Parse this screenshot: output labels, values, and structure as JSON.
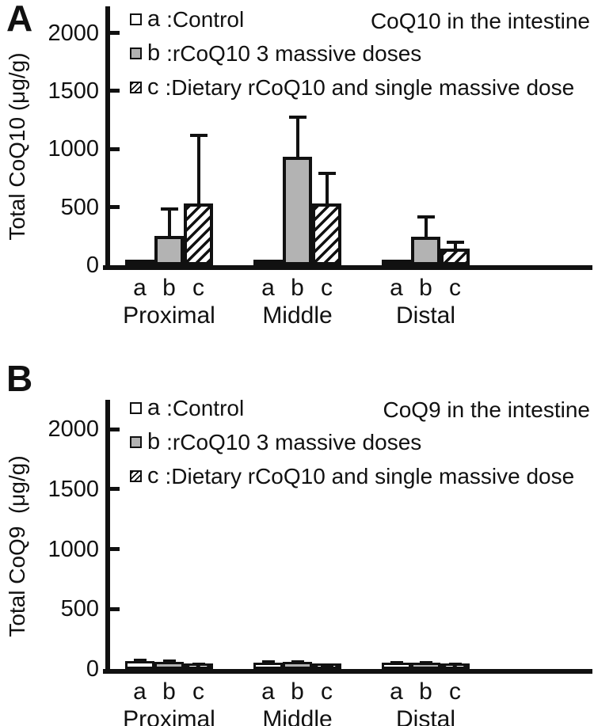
{
  "figure": {
    "panels": [
      {
        "label": "A",
        "title": "CoQ10 in the intestine",
        "y_axis_label": "Total CoQ10 (μg/g)",
        "legend": [
          {
            "key": "a",
            "label": ":Control",
            "swatch": "white"
          },
          {
            "key": "b",
            "label": ":rCoQ10 3 massive doses",
            "swatch": "gray"
          },
          {
            "key": "c",
            "label": ":Dietary rCoQ10 and single massive dose",
            "swatch": "hatch"
          }
        ]
      },
      {
        "label": "B",
        "title": "CoQ9 in the intestine",
        "y_axis_label": "Total CoQ9  (μg/g)",
        "legend": [
          {
            "key": "a",
            "label": ":Control",
            "swatch": "white"
          },
          {
            "key": "b",
            "label": ":rCoQ10 3 massive doses",
            "swatch": "gray"
          },
          {
            "key": "c",
            "label": ":Dietary rCoQ10 and single massive dose",
            "swatch": "hatch"
          }
        ]
      }
    ]
  },
  "colors": {
    "ink": "#111111",
    "bar_gray": "#b3b3b3",
    "bar_white": "#ffffff"
  },
  "chart_data": [
    {
      "type": "bar",
      "title": "CoQ10 in the intestine",
      "xlabel": "",
      "ylabel": "Total CoQ10 (μg/g)",
      "categories": [
        "Proximal",
        "Middle",
        "Distal"
      ],
      "series": [
        {
          "key": "a",
          "name": "Control",
          "values": [
            10,
            10,
            10
          ],
          "errors": [
            0,
            0,
            0
          ]
        },
        {
          "key": "b",
          "name": "rCoQ10 3 massive doses",
          "values": [
            250,
            935,
            245
          ],
          "errors": [
            250,
            350,
            185
          ]
        },
        {
          "key": "c",
          "name": "Dietary rCoQ10 and single massive dose",
          "values": [
            530,
            535,
            140
          ],
          "errors": [
            600,
            270,
            70
          ]
        }
      ],
      "yticks": [
        0,
        500,
        1000,
        1500,
        2000
      ],
      "ylim": [
        0,
        2200
      ],
      "error_bars": "upper, capped",
      "legend_position": "top-left",
      "grid": false
    },
    {
      "type": "bar",
      "title": "CoQ9 in the intestine",
      "xlabel": "",
      "ylabel": "Total CoQ9 (μg/g)",
      "categories": [
        "Proximal",
        "Middle",
        "Distal"
      ],
      "series": [
        {
          "key": "a",
          "name": "Control",
          "values": [
            65,
            50,
            52
          ],
          "errors": [
            20,
            20,
            12
          ]
        },
        {
          "key": "b",
          "name": "rCoQ10 3 massive doses",
          "values": [
            62,
            58,
            55
          ],
          "errors": [
            15,
            15,
            10
          ]
        },
        {
          "key": "c",
          "name": "Dietary rCoQ10 and single massive dose",
          "values": [
            40,
            35,
            42
          ],
          "errors": [
            12,
            10,
            10
          ]
        }
      ],
      "yticks": [
        0,
        500,
        1000,
        1500,
        2000
      ],
      "ylim": [
        0,
        2200
      ],
      "error_bars": "upper, capped",
      "legend_position": "top-left",
      "grid": false
    }
  ]
}
